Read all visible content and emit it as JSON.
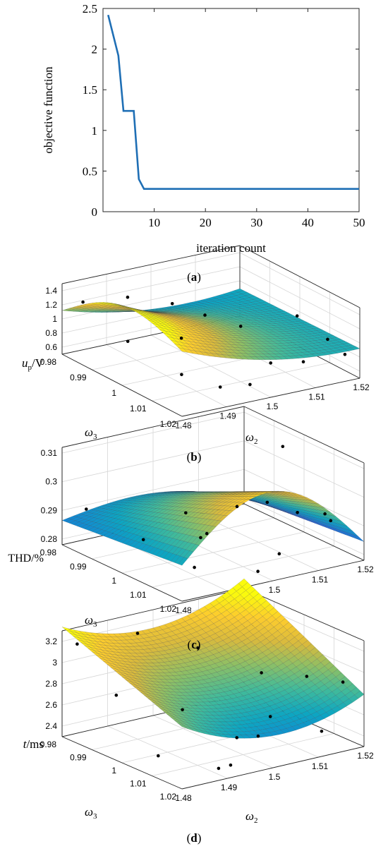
{
  "chart_data": [
    {
      "panel": "a",
      "type": "line",
      "xlabel": "iteration count",
      "ylabel": "objective function",
      "xlim": [
        0,
        50
      ],
      "ylim": [
        0,
        2.5
      ],
      "xticks": [
        "10",
        "20",
        "30",
        "40",
        "50"
      ],
      "yticks": [
        "0",
        "0.5",
        "1",
        "1.5",
        "2",
        "2.5"
      ],
      "grid": false,
      "line_color": "#1f6fb5",
      "x": [
        1,
        3,
        4,
        5,
        6,
        7,
        8,
        50
      ],
      "y": [
        2.42,
        1.92,
        1.24,
        1.24,
        1.24,
        0.4,
        0.28,
        0.28
      ]
    },
    {
      "panel": "b",
      "type": "surface",
      "zlabel": "up/V",
      "zlabel_main": "u",
      "zlabel_sub": "p",
      "zlabel_unit": "/V",
      "xlabel": "ω2",
      "xlabel_main": "ω",
      "xlabel_sub": "2",
      "ylabel": "ω3",
      "ylabel_main": "ω",
      "ylabel_sub": "3",
      "xticks": [
        "1.48",
        "1.49",
        "1.5",
        "1.51",
        "1.52"
      ],
      "yticks": [
        "1.02",
        "1.01",
        "1",
        "0.99",
        "0.98"
      ],
      "zticks": [
        "0.6",
        "0.8",
        "1",
        "1.2",
        "1.4"
      ],
      "zlim": [
        0.5,
        1.5
      ],
      "grid": true,
      "colormap": "parula"
    },
    {
      "panel": "c",
      "type": "surface",
      "zlabel": "THD/%",
      "xlabel": "ω2",
      "xlabel_main": "ω",
      "xlabel_sub": "2",
      "ylabel": "ω3",
      "ylabel_main": "ω",
      "ylabel_sub": "3",
      "xticks": [
        "1.48",
        "1.49",
        "1.5",
        "1.51",
        "1.52"
      ],
      "yticks": [
        "1.02",
        "1.01",
        "1",
        "0.99",
        "0.98"
      ],
      "zticks": [
        "0.28",
        "0.29",
        "0.3",
        "0.31"
      ],
      "zlim": [
        0.278,
        0.312
      ],
      "grid": true,
      "colormap": "parula"
    },
    {
      "panel": "d",
      "type": "surface",
      "zlabel": "t/ms",
      "zlabel_main": "t",
      "zlabel_unit": "/ms",
      "xlabel": "ω2",
      "xlabel_main": "ω",
      "xlabel_sub": "2",
      "ylabel": "ω3",
      "ylabel_main": "ω",
      "ylabel_sub": "3",
      "xticks": [
        "1.48",
        "1.49",
        "1.5",
        "1.51",
        "1.52"
      ],
      "yticks": [
        "1.02",
        "1.01",
        "1",
        "0.99",
        "0.98"
      ],
      "zticks": [
        "2.4",
        "2.6",
        "2.8",
        "3",
        "3.2"
      ],
      "zlim": [
        2.3,
        3.3
      ],
      "grid": true,
      "colormap": "parula"
    }
  ],
  "captions": [
    "a",
    "b",
    "c",
    "d"
  ]
}
